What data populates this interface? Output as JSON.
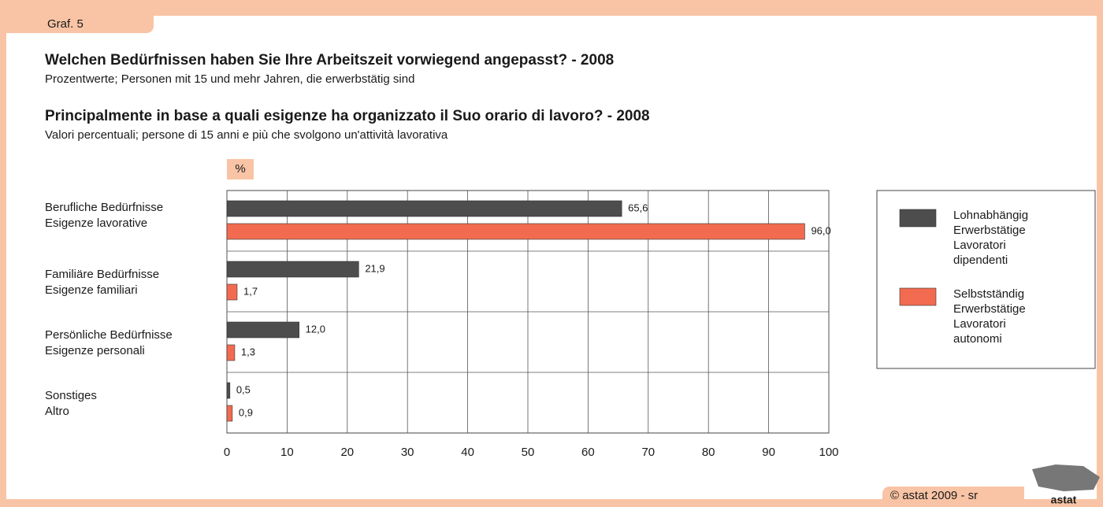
{
  "header": {
    "tab": "Graf. 5"
  },
  "chart_data": {
    "type": "hbar",
    "title": "Welchen Bedürfnissen haben Sie Ihre Arbeitszeit vorwiegend angepasst? - 2008",
    "subtitle": "Prozentwerte; Personen mit 15 und mehr Jahren, die erwerbstätig sind",
    "title_it": "Principalmente in base a quali esigenze ha organizzato il Suo orario di lavoro? - 2008",
    "subtitle_it": "Valori percentuali; persone di 15 anni e più che svolgono un'attività lavorativa",
    "unit": "%",
    "categories": [
      [
        "Berufliche Bedürfnisse",
        "Esigenze lavorative"
      ],
      [
        "Familiäre Bedürfnisse",
        "Esigenze familiari"
      ],
      [
        "Persönliche Bedürfnisse",
        "Esigenze personali"
      ],
      [
        "Sonstiges",
        "Altro"
      ]
    ],
    "series": [
      {
        "name": [
          "Lohnabhängig",
          "Erwerbstätige",
          "Lavoratori",
          "dipendenti"
        ],
        "color": "#4d4d4d",
        "values": [
          65.6,
          21.9,
          12.0,
          0.5
        ],
        "value_labels": [
          "65,6",
          "21,9",
          "12,0",
          "0,5"
        ]
      },
      {
        "name": [
          "Selbstständig",
          "Erwerbstätige",
          "Lavoratori",
          "autonomi"
        ],
        "color": "#f26b50",
        "values": [
          96.0,
          1.7,
          1.3,
          0.9
        ],
        "value_labels": [
          "96,0",
          "1,7",
          "1,3",
          "0,9"
        ]
      }
    ],
    "xlim": [
      0,
      100
    ],
    "xticks": [
      0,
      10,
      20,
      30,
      40,
      50,
      60,
      70,
      80,
      90,
      100
    ],
    "grid": true,
    "legend": "right"
  },
  "footer": {
    "copyright": "© astat 2009 - sr",
    "logo": "astat"
  }
}
